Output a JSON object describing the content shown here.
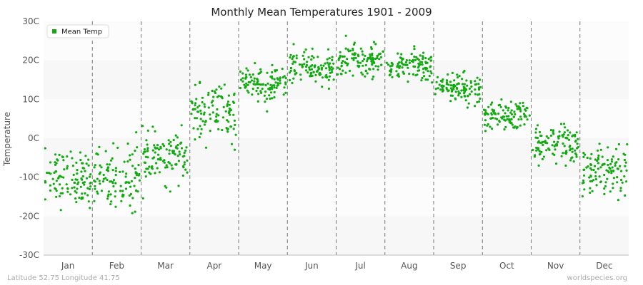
{
  "chart_data": {
    "type": "scatter",
    "title": "Monthly Mean Temperatures 1901 - 2009",
    "ylabel": "Temperature",
    "xlabel": "",
    "categories": [
      "Jan",
      "Feb",
      "Mar",
      "Apr",
      "May",
      "Jun",
      "Jul",
      "Aug",
      "Sep",
      "Oct",
      "Nov",
      "Dec"
    ],
    "ylim": [
      -30,
      30
    ],
    "yticks": [
      -30,
      -20,
      -10,
      0,
      10,
      20,
      30
    ],
    "ytick_labels": [
      "-30C",
      "-20C",
      "-10C",
      "0C",
      "10C",
      "20C",
      "30C"
    ],
    "grid": "alternating horizontal bands, dashed vertical month separators",
    "legend_position": "top-left",
    "series": [
      {
        "name": "Mean Temp",
        "color": "#11aa11",
        "points_per_month": 109,
        "monthly_mean": [
          -10,
          -10,
          -5,
          6,
          14,
          18,
          20,
          18.5,
          13,
          5.5,
          -2,
          -8
        ],
        "monthly_spread": [
          3.5,
          4,
          3,
          3.5,
          2.5,
          2,
          2,
          2,
          1.8,
          2,
          2.5,
          3
        ]
      }
    ]
  },
  "footer": {
    "left": "Latitude 52.75 Longitude 41.75",
    "right": "worldspecies.org"
  }
}
